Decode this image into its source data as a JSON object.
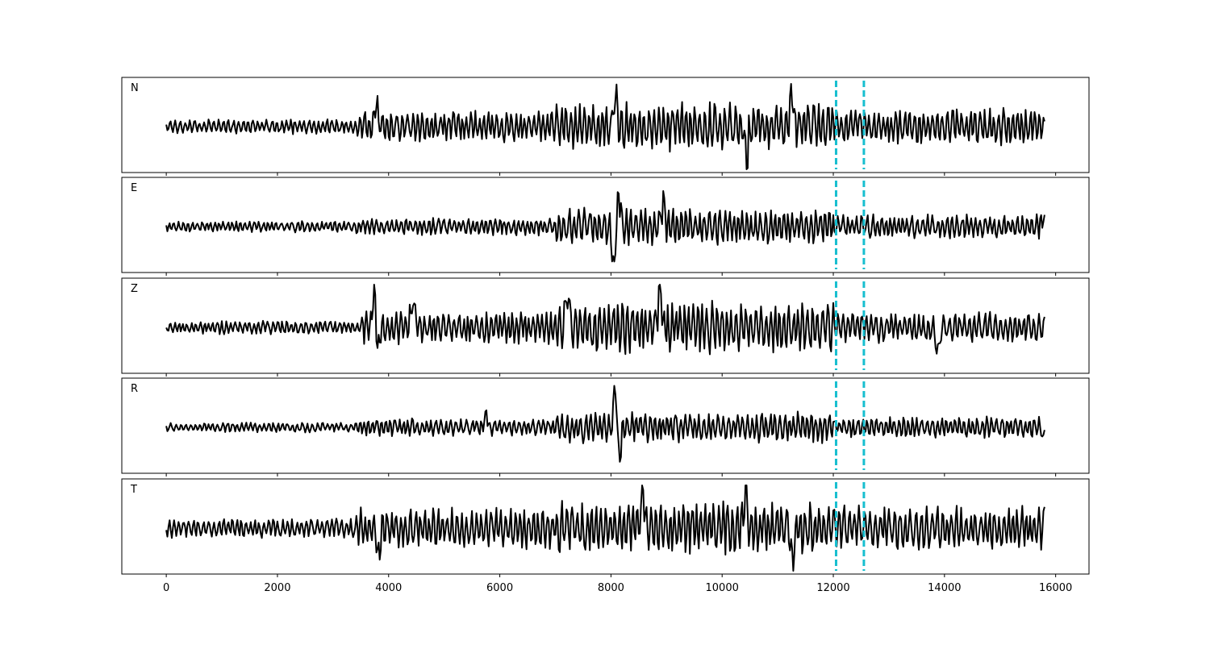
{
  "chart_data": {
    "type": "line",
    "title": "",
    "xlabel": "",
    "ylabel": "",
    "xlim": [
      -800,
      16600
    ],
    "x_ticks": [
      0,
      2000,
      4000,
      6000,
      8000,
      10000,
      12000,
      14000,
      16000
    ],
    "x_tick_labels": [
      "0",
      "2000",
      "4000",
      "6000",
      "8000",
      "10000",
      "12000",
      "14000",
      "16000"
    ],
    "sample_range": [
      0,
      15800
    ],
    "grid": false,
    "legend": "none",
    "trace_color": "#000000",
    "marker_color": "#17becf",
    "vertical_markers": [
      12050,
      12550
    ],
    "panels": [
      {
        "label": "N",
        "seed": 11,
        "segments": [
          {
            "from": 0,
            "to": 3400,
            "amp": 0.18
          },
          {
            "from": 3400,
            "to": 7000,
            "amp": 0.38
          },
          {
            "from": 7000,
            "to": 12000,
            "amp": 0.6
          },
          {
            "from": 12000,
            "to": 15800,
            "amp": 0.45
          }
        ],
        "peaks": [
          {
            "x": 8080,
            "amp": 0.8
          },
          {
            "x": 10440,
            "amp": -0.9
          },
          {
            "x": 11250,
            "amp": 0.95
          },
          {
            "x": 3780,
            "amp": 0.55
          }
        ]
      },
      {
        "label": "E",
        "seed": 23,
        "segments": [
          {
            "from": 0,
            "to": 3400,
            "amp": 0.14
          },
          {
            "from": 3400,
            "to": 7000,
            "amp": 0.22
          },
          {
            "from": 7000,
            "to": 12000,
            "amp": 0.45
          },
          {
            "from": 12000,
            "to": 15800,
            "amp": 0.3
          }
        ],
        "peaks": [
          {
            "x": 8050,
            "amp": -1.0
          },
          {
            "x": 8140,
            "amp": 0.78
          },
          {
            "x": 8940,
            "amp": 0.6
          },
          {
            "x": 15780,
            "amp": 0.2
          }
        ]
      },
      {
        "label": "Z",
        "seed": 37,
        "segments": [
          {
            "from": 0,
            "to": 3500,
            "amp": 0.17
          },
          {
            "from": 3500,
            "to": 7000,
            "amp": 0.42
          },
          {
            "from": 7000,
            "to": 12000,
            "amp": 0.65
          },
          {
            "from": 12000,
            "to": 15800,
            "amp": 0.38
          }
        ],
        "peaks": [
          {
            "x": 3740,
            "amp": 0.95
          },
          {
            "x": 3800,
            "amp": -0.6
          },
          {
            "x": 4430,
            "amp": 0.75
          },
          {
            "x": 7220,
            "amp": 0.92
          },
          {
            "x": 8880,
            "amp": 1.0
          },
          {
            "x": 13880,
            "amp": -0.6
          }
        ]
      },
      {
        "label": "R",
        "seed": 53,
        "segments": [
          {
            "from": 0,
            "to": 3400,
            "amp": 0.12
          },
          {
            "from": 3400,
            "to": 7000,
            "amp": 0.22
          },
          {
            "from": 7000,
            "to": 12000,
            "amp": 0.38
          },
          {
            "from": 12000,
            "to": 15800,
            "amp": 0.26
          }
        ],
        "peaks": [
          {
            "x": 8080,
            "amp": 1.0
          },
          {
            "x": 8150,
            "amp": -0.8
          },
          {
            "x": 5750,
            "amp": 0.32
          },
          {
            "x": 15790,
            "amp": -0.25
          }
        ]
      },
      {
        "label": "T",
        "seed": 71,
        "segments": [
          {
            "from": 0,
            "to": 3400,
            "amp": 0.24
          },
          {
            "from": 3400,
            "to": 7000,
            "amp": 0.5
          },
          {
            "from": 7000,
            "to": 12000,
            "amp": 0.65
          },
          {
            "from": 12000,
            "to": 15800,
            "amp": 0.55
          }
        ],
        "peaks": [
          {
            "x": 8570,
            "amp": 0.9
          },
          {
            "x": 10430,
            "amp": 1.0
          },
          {
            "x": 11270,
            "amp": -0.95
          },
          {
            "x": 3820,
            "amp": -0.62
          }
        ]
      }
    ]
  }
}
